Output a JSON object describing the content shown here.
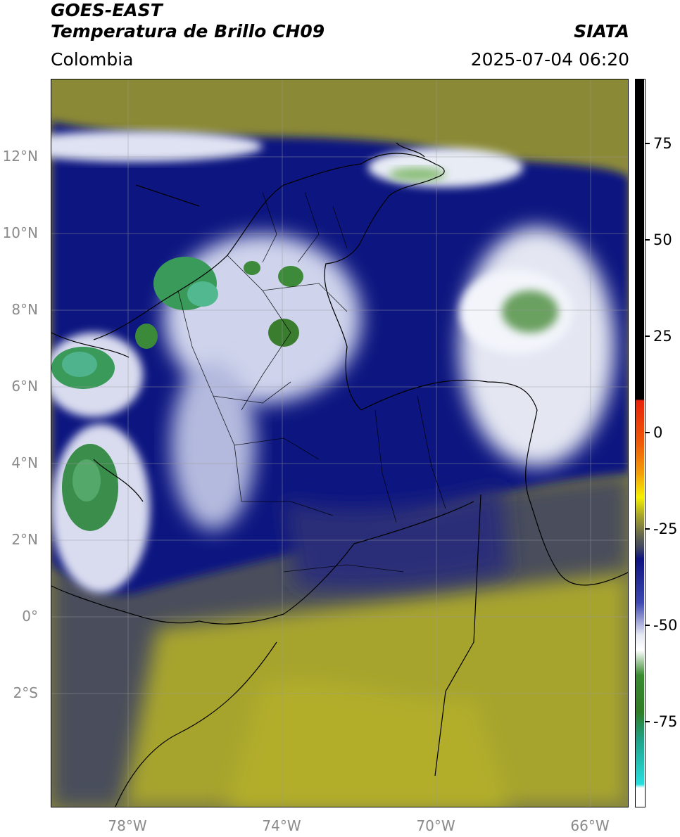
{
  "header": {
    "title_line1": "GOES-EAST",
    "title_line2": "Temperatura de Brillo CH09",
    "region": "Colombia",
    "source": "SIATA",
    "datetime": "2025-07-04 06:20"
  },
  "map": {
    "lat_labels": [
      "12°N",
      "10°N",
      "8°N",
      "6°N",
      "4°N",
      "2°N",
      "0°",
      "2°S"
    ],
    "lon_labels": [
      "78°W",
      "74°W",
      "70°W",
      "66°W"
    ],
    "extent": {
      "lon_min": -80,
      "lon_max": -65,
      "lat_min": -5,
      "lat_max": 14
    }
  },
  "colorbar": {
    "tick_labels": [
      "75",
      "50",
      "25",
      "0",
      "-25",
      "-50",
      "-75"
    ],
    "colors": {
      "black": "#000000",
      "red": "#e8220a",
      "orange": "#f39a09",
      "yellow": "#f5f000",
      "olive": "#a8a52a",
      "slate": "#3e4460",
      "navy": "#0d1280",
      "white": "#ffffff",
      "green": "#2f7d25",
      "teal": "#1fa38a",
      "cyan": "#27dede"
    }
  }
}
